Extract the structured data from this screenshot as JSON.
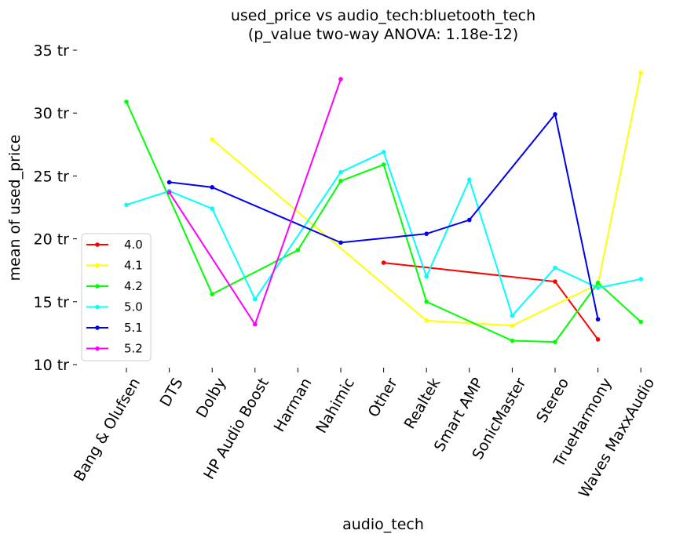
{
  "chart_data": {
    "type": "line",
    "title": "used_price vs audio_tech:bluetooth_tech",
    "subtitle": "(p_value two-way ANOVA: 1.18e-12)",
    "xlabel": "audio_tech",
    "ylabel": "mean of used_price",
    "categories": [
      "Bang & Olufsen",
      "DTS",
      "Dolby",
      "HP Audio Boost",
      "Harman",
      "Nahimic",
      "Other",
      "Realtek",
      "Smart AMP",
      "SonicMaster",
      "Stereo",
      "TrueHarmony",
      "Waves MaxxAudio"
    ],
    "ylim": [
      10,
      35
    ],
    "yticks": [
      10,
      15,
      20,
      25,
      30,
      35
    ],
    "ytick_labels": [
      "10 tr",
      "15 tr",
      "20 tr",
      "25 tr",
      "30 tr",
      "35 tr"
    ],
    "legend_position": "center-left",
    "grid": false,
    "series": [
      {
        "name": "4.0",
        "color": "#ff0000",
        "values": [
          null,
          null,
          null,
          null,
          null,
          null,
          18.1,
          null,
          null,
          null,
          16.6,
          12.0,
          null
        ]
      },
      {
        "name": "4.1",
        "color": "#ffff00",
        "values": [
          null,
          null,
          27.9,
          null,
          null,
          null,
          null,
          13.5,
          null,
          13.1,
          null,
          16.4,
          33.2
        ]
      },
      {
        "name": "4.2",
        "color": "#00ff00",
        "values": [
          30.9,
          null,
          15.6,
          null,
          19.1,
          24.6,
          25.9,
          15.0,
          null,
          11.9,
          11.8,
          16.5,
          13.4
        ]
      },
      {
        "name": "5.0",
        "color": "#00ffff",
        "values": [
          22.7,
          23.8,
          22.4,
          15.2,
          null,
          25.3,
          26.9,
          17.0,
          24.7,
          13.9,
          17.7,
          16.1,
          16.8
        ]
      },
      {
        "name": "5.1",
        "color": "#0000ee",
        "values": [
          null,
          24.5,
          24.1,
          null,
          null,
          19.7,
          null,
          20.4,
          21.5,
          null,
          29.9,
          13.6,
          null
        ]
      },
      {
        "name": "5.2",
        "color": "#ff00ff",
        "values": [
          null,
          23.7,
          null,
          13.2,
          null,
          32.7,
          null,
          null,
          null,
          null,
          null,
          null,
          null
        ]
      }
    ]
  }
}
